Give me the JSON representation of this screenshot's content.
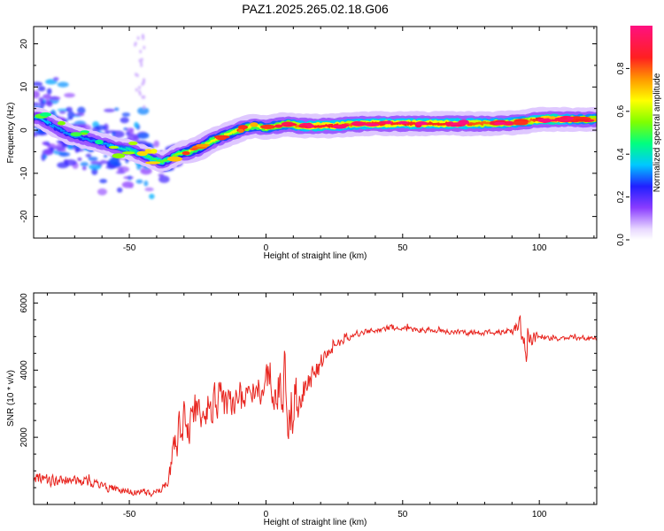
{
  "title": "PAZ1.2025.265.02.18.G06",
  "chart_data": [
    {
      "type": "heatmap",
      "title": "PAZ1.2025.265.02.18.G06",
      "xlabel": "Height of straight line (km)",
      "ylabel": "Frequency (Hz)",
      "xlim": [
        -85,
        121
      ],
      "ylim": [
        -25,
        24
      ],
      "xticks": [
        -50,
        0,
        50,
        100
      ],
      "yticks": [
        -20,
        -10,
        0,
        10,
        20
      ],
      "ridge": {
        "x": [
          -83,
          -78,
          -72,
          -66,
          -60,
          -55,
          -50,
          -46,
          -42,
          -38,
          -35,
          -32,
          -28,
          -24,
          -20,
          -16,
          -12,
          -8,
          -4,
          0,
          4,
          8,
          12,
          16,
          20,
          25,
          30,
          40,
          50,
          60,
          70,
          80,
          90,
          95,
          100,
          105,
          110,
          115,
          121
        ],
        "y": [
          3,
          1,
          -1,
          -2,
          -3,
          -4,
          -4.5,
          -5.5,
          -6.5,
          -7.5,
          -6.5,
          -5.5,
          -5,
          -4,
          -2.5,
          -1.5,
          -0.5,
          0.5,
          1,
          0.5,
          1,
          1.5,
          1,
          1,
          1,
          1,
          1.3,
          1.5,
          1.5,
          1.5,
          1.5,
          1.5,
          1.7,
          2,
          2.5,
          2.5,
          2.5,
          2.5,
          2.5
        ],
        "amplitude": [
          0.35,
          0.3,
          0.3,
          0.3,
          0.3,
          0.35,
          0.4,
          0.45,
          0.45,
          0.5,
          0.5,
          0.55,
          0.6,
          0.55,
          0.6,
          0.6,
          0.6,
          0.65,
          0.6,
          0.65,
          0.65,
          0.7,
          0.75,
          0.8,
          0.85,
          0.8,
          0.75,
          0.8,
          0.8,
          0.8,
          0.8,
          0.75,
          0.75,
          0.7,
          0.85,
          0.9,
          0.75,
          0.7,
          0.7
        ]
      },
      "colorbar": {
        "label": "Normalized spectral amplitude",
        "ticks": [
          0.0,
          0.2,
          0.4,
          0.6,
          0.8
        ],
        "range": [
          0,
          1
        ]
      }
    },
    {
      "type": "line",
      "xlabel": "Height of straight line (km)",
      "ylabel": "SNR (10 * v/v)",
      "xlim": [
        -85,
        121
      ],
      "ylim": [
        0,
        6300
      ],
      "xticks": [
        -50,
        0,
        50,
        100
      ],
      "yticks": [
        2000,
        4000,
        6000
      ],
      "series": [
        {
          "name": "SNR",
          "color": "#e8231d",
          "x": [
            -85,
            -80,
            -75,
            -70,
            -65,
            -60,
            -55,
            -50,
            -45,
            -40,
            -37,
            -34,
            -32,
            -30,
            -28,
            -26,
            -24,
            -22,
            -20,
            -18,
            -16,
            -14,
            -12,
            -10,
            -8,
            -6,
            -4,
            -2,
            0,
            2,
            4,
            6,
            8,
            10,
            12,
            14,
            16,
            18,
            20,
            22,
            24,
            26,
            28,
            30,
            35,
            40,
            45,
            50,
            55,
            60,
            65,
            70,
            75,
            80,
            85,
            90,
            93,
            95,
            97,
            100,
            105,
            110,
            115,
            121
          ],
          "y": [
            800,
            700,
            750,
            700,
            650,
            550,
            450,
            400,
            350,
            350,
            500,
            1500,
            2200,
            2600,
            2500,
            2800,
            2700,
            2900,
            3000,
            3100,
            3000,
            2900,
            3200,
            3200,
            3300,
            3300,
            3200,
            3500,
            3700,
            3800,
            3500,
            3300,
            3000,
            3000,
            3300,
            3600,
            3700,
            3900,
            4200,
            4400,
            4600,
            4800,
            4900,
            5000,
            5100,
            5200,
            5250,
            5250,
            5200,
            5200,
            5150,
            5150,
            5100,
            5100,
            5150,
            5200,
            5300,
            4700,
            5000,
            5000,
            4950,
            4950,
            4950,
            4950
          ],
          "spread": [
            250,
            250,
            250,
            200,
            200,
            200,
            150,
            150,
            150,
            150,
            200,
            600,
            900,
            900,
            900,
            900,
            900,
            900,
            800,
            800,
            800,
            800,
            800,
            800,
            800,
            800,
            700,
            700,
            800,
            900,
            1000,
            1200,
            1600,
            1200,
            800,
            700,
            600,
            500,
            400,
            300,
            250,
            200,
            180,
            150,
            150,
            120,
            120,
            120,
            120,
            120,
            120,
            120,
            120,
            120,
            120,
            200,
            400,
            700,
            400,
            120,
            100,
            100,
            100,
            100
          ]
        }
      ]
    }
  ]
}
